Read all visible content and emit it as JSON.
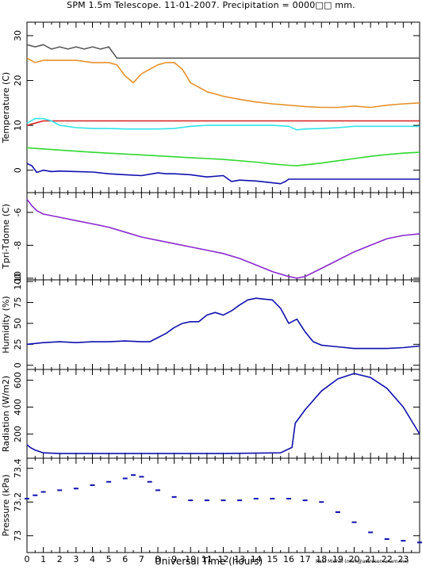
{
  "title": "SPM 1.5m Telescope. 11-01-2007. Precipitation = 0000□□ mm.",
  "credit": "Raul Michel (rmm@astrosen.unam.mx)",
  "colors": {
    "gray": "#5a5a5a",
    "orange": "#e8902a",
    "red": "#d62020",
    "cyan": "#30e4e8",
    "green": "#30d830",
    "blue": "#1010b0",
    "purple": "#8a2ad0"
  },
  "chart_data": [
    {
      "type": "line",
      "ylabel": "Temperature (C)",
      "ylim": [
        -5,
        33
      ],
      "yticks": [
        0,
        10,
        20,
        30
      ],
      "ytick_labels": [
        "0",
        "10",
        "20",
        "30"
      ],
      "xlim": [
        0,
        24
      ],
      "series": [
        {
          "color": "gray",
          "x": [
            0,
            0.5,
            1,
            1.5,
            2,
            2.5,
            3,
            3.5,
            4,
            4.5,
            5,
            5.5,
            6,
            8,
            10,
            12,
            14,
            16,
            18,
            20,
            22,
            24
          ],
          "y": [
            28,
            27.5,
            28,
            27,
            27.5,
            27,
            27.5,
            27,
            27.5,
            27,
            27.5,
            25,
            25,
            25,
            25,
            25,
            25,
            25,
            25,
            25,
            25,
            25
          ]
        },
        {
          "color": "orange",
          "x": [
            0,
            0.5,
            1,
            2,
            3,
            4,
            5,
            5.5,
            6,
            6.5,
            7,
            7.5,
            8,
            8.5,
            9,
            9.5,
            10,
            11,
            12,
            13,
            14,
            15,
            16,
            17,
            18,
            19,
            20,
            21,
            22,
            23,
            24
          ],
          "y": [
            25,
            24,
            24.5,
            24.5,
            24.5,
            24,
            24,
            23.5,
            21,
            19.5,
            21.5,
            22.5,
            23.5,
            24,
            24,
            22.5,
            19.5,
            17.5,
            16.5,
            15.8,
            15.2,
            14.8,
            14.5,
            14.2,
            14,
            14,
            14.3,
            14,
            14.5,
            14.8,
            15
          ]
        },
        {
          "color": "red",
          "x": [
            0,
            0.5,
            1,
            24
          ],
          "y": [
            10,
            10.5,
            11,
            11
          ]
        },
        {
          "color": "cyan",
          "x": [
            0,
            0.5,
            1,
            1.5,
            2,
            3,
            4,
            5,
            6,
            7,
            8,
            9,
            10,
            11,
            12,
            13,
            14,
            15,
            16,
            16.5,
            17,
            18,
            19,
            20,
            21,
            22,
            23,
            24
          ],
          "y": [
            10.5,
            11.5,
            11.5,
            11,
            10,
            9.5,
            9.3,
            9.3,
            9.2,
            9.2,
            9.2,
            9.3,
            9.8,
            10,
            10,
            10,
            10,
            10,
            9.8,
            9,
            9.2,
            9.3,
            9.5,
            9.8,
            9.8,
            9.8,
            9.8,
            9.8
          ]
        },
        {
          "color": "green",
          "x": [
            0,
            2,
            4,
            6,
            8,
            10,
            12,
            14,
            15,
            16,
            16.5,
            17,
            18,
            19,
            20,
            21,
            22,
            23,
            24
          ],
          "y": [
            5,
            4.5,
            4,
            3.6,
            3.2,
            2.8,
            2.4,
            1.8,
            1.4,
            1.1,
            1,
            1.2,
            1.6,
            2.1,
            2.6,
            3.1,
            3.5,
            3.8,
            4
          ]
        },
        {
          "color": "blue",
          "x": [
            0,
            0.3,
            0.6,
            1,
            1.5,
            2,
            3,
            4,
            5,
            6,
            7,
            8,
            8.5,
            9,
            10,
            11,
            12,
            12.5,
            13,
            14,
            15,
            15.5,
            15.8,
            16,
            17,
            20,
            24
          ],
          "y": [
            1.5,
            1,
            -0.5,
            0,
            -0.3,
            -0.2,
            -0.3,
            -0.4,
            -0.8,
            -1,
            -1.2,
            -0.6,
            -0.8,
            -0.8,
            -1,
            -1.5,
            -1.2,
            -2.5,
            -2.2,
            -2.4,
            -2.8,
            -3,
            -2.5,
            -2,
            -2,
            -2,
            -2
          ]
        }
      ]
    },
    {
      "type": "line",
      "ylabel": "Tpri-Tdome (C)",
      "ylim": [
        -10.1,
        -4.8
      ],
      "yticks": [
        -10,
        -8,
        -6
      ],
      "ytick_labels": [
        "-10",
        "-8",
        "-6"
      ],
      "xlim": [
        0,
        24
      ],
      "series": [
        {
          "color": "purple",
          "x": [
            0,
            0.3,
            0.6,
            1,
            2,
            3,
            4,
            5,
            6,
            7,
            8,
            9,
            10,
            11,
            12,
            13,
            14,
            15,
            16,
            16.5,
            17,
            18,
            19,
            20,
            21,
            22,
            23,
            24
          ],
          "y": [
            -5.2,
            -5.6,
            -5.9,
            -6.1,
            -6.3,
            -6.5,
            -6.7,
            -6.9,
            -7.2,
            -7.5,
            -7.7,
            -7.9,
            -8.1,
            -8.3,
            -8.5,
            -8.8,
            -9.2,
            -9.6,
            -9.9,
            -10,
            -9.9,
            -9.4,
            -8.9,
            -8.4,
            -8,
            -7.6,
            -7.4,
            -7.3
          ]
        }
      ]
    },
    {
      "type": "line",
      "ylabel": "Humidity (%)",
      "ylim": [
        -5,
        102
      ],
      "yticks": [
        0,
        25,
        50,
        75,
        100
      ],
      "ytick_labels": [
        "0",
        "25",
        "50",
        "75",
        "100"
      ],
      "xlim": [
        0,
        24
      ],
      "series": [
        {
          "color": "blue",
          "x": [
            0,
            1,
            2,
            3,
            4,
            5,
            6,
            7,
            7.5,
            8,
            8.5,
            9,
            9.5,
            10,
            10.5,
            11,
            11.5,
            12,
            12.5,
            13,
            13.5,
            14,
            14.5,
            15,
            15.5,
            16,
            16.5,
            17,
            17.5,
            18,
            19,
            20,
            21,
            22,
            23,
            24
          ],
          "y": [
            25,
            27,
            28,
            27,
            28,
            28,
            29,
            28,
            28,
            33,
            38,
            45,
            50,
            52,
            52,
            60,
            63,
            60,
            65,
            72,
            78,
            80,
            79,
            78,
            68,
            50,
            55,
            40,
            28,
            24,
            22,
            20,
            20,
            20,
            21,
            23
          ]
        }
      ]
    },
    {
      "type": "line",
      "ylabel": "Radiation (W/m2)",
      "ylim": [
        20,
        680
      ],
      "yticks": [
        200,
        400,
        600
      ],
      "ytick_labels": [
        "200",
        "400",
        "600"
      ],
      "xlim": [
        0,
        24
      ],
      "series": [
        {
          "color": "blue",
          "x": [
            0,
            0.2,
            0.5,
            1,
            2,
            4,
            8,
            12,
            15.5,
            16.2,
            16.4,
            17,
            18,
            19,
            20,
            21,
            22,
            23,
            24
          ],
          "y": [
            120,
            100,
            80,
            60,
            55,
            55,
            55,
            55,
            60,
            100,
            280,
            380,
            520,
            610,
            650,
            620,
            540,
            400,
            200
          ]
        }
      ]
    },
    {
      "type": "scatter",
      "ylabel": "Pressure (kPa)",
      "ylim": [
        72.9,
        73.46
      ],
      "yticks": [
        73,
        73.2,
        73.4
      ],
      "ytick_labels": [
        "73",
        "73.2",
        "73.4"
      ],
      "xlim": [
        0,
        24
      ],
      "series": [
        {
          "color": "blue",
          "x": [
            0,
            0.5,
            1,
            2,
            3,
            4,
            5,
            6,
            6.5,
            7,
            7.5,
            8,
            9,
            10,
            11,
            12,
            13,
            14,
            15,
            16,
            17,
            18,
            19,
            20,
            21,
            22,
            23,
            24
          ],
          "y": [
            73.22,
            73.24,
            73.26,
            73.27,
            73.28,
            73.3,
            73.32,
            73.34,
            73.36,
            73.35,
            73.32,
            73.27,
            73.23,
            73.21,
            73.21,
            73.21,
            73.21,
            73.22,
            73.22,
            73.22,
            73.21,
            73.2,
            73.14,
            73.08,
            73.02,
            72.98,
            72.97,
            72.96
          ]
        }
      ]
    }
  ],
  "x_axis": {
    "label": "Universal Time (hours)",
    "ticks": [
      0,
      1,
      2,
      3,
      4,
      5,
      6,
      7,
      8,
      9,
      10,
      11,
      12,
      13,
      14,
      15,
      16,
      17,
      18,
      19,
      20,
      21,
      22,
      23
    ],
    "tick_labels": [
      "0",
      "1",
      "2",
      "3",
      "4",
      "5",
      "6",
      "7",
      "8",
      "9",
      "10",
      "11",
      "12",
      "13",
      "14",
      "15",
      "16",
      "17",
      "18",
      "19",
      "20",
      "21",
      "22",
      "23"
    ]
  }
}
